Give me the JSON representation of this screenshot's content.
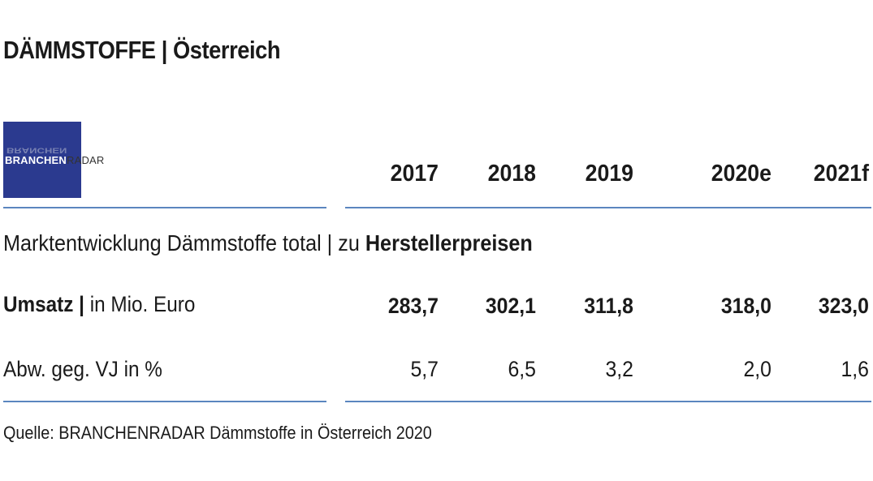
{
  "title": "DÄMMSTOFFE | Österreich",
  "logo": {
    "brand": "BRANCHEN",
    "radar": "RADAR"
  },
  "chart_data": {
    "type": "table",
    "columns": [
      "2017",
      "2018",
      "2019",
      "2020e",
      "2021f"
    ],
    "subheading_prefix": "Marktentwicklung Dämmstoffe total | zu ",
    "subheading_bold": "Herstellerpreisen",
    "rows": [
      {
        "label_bold": "Umsatz |",
        "label_rest": " in Mio. Euro",
        "values": [
          "283,7",
          "302,1",
          "311,8",
          "318,0",
          "323,0"
        ]
      },
      {
        "label_bold": "",
        "label_rest": "Abw. geg. VJ in %",
        "values": [
          "5,7",
          "6,5",
          "3,2",
          "2,0",
          "1,6"
        ]
      }
    ],
    "source": "Quelle: BRANCHENRADAR Dämmstoffe in Österreich 2020"
  },
  "colors": {
    "logo_bg": "#2b3a8f",
    "rule": "#5b86bf"
  }
}
